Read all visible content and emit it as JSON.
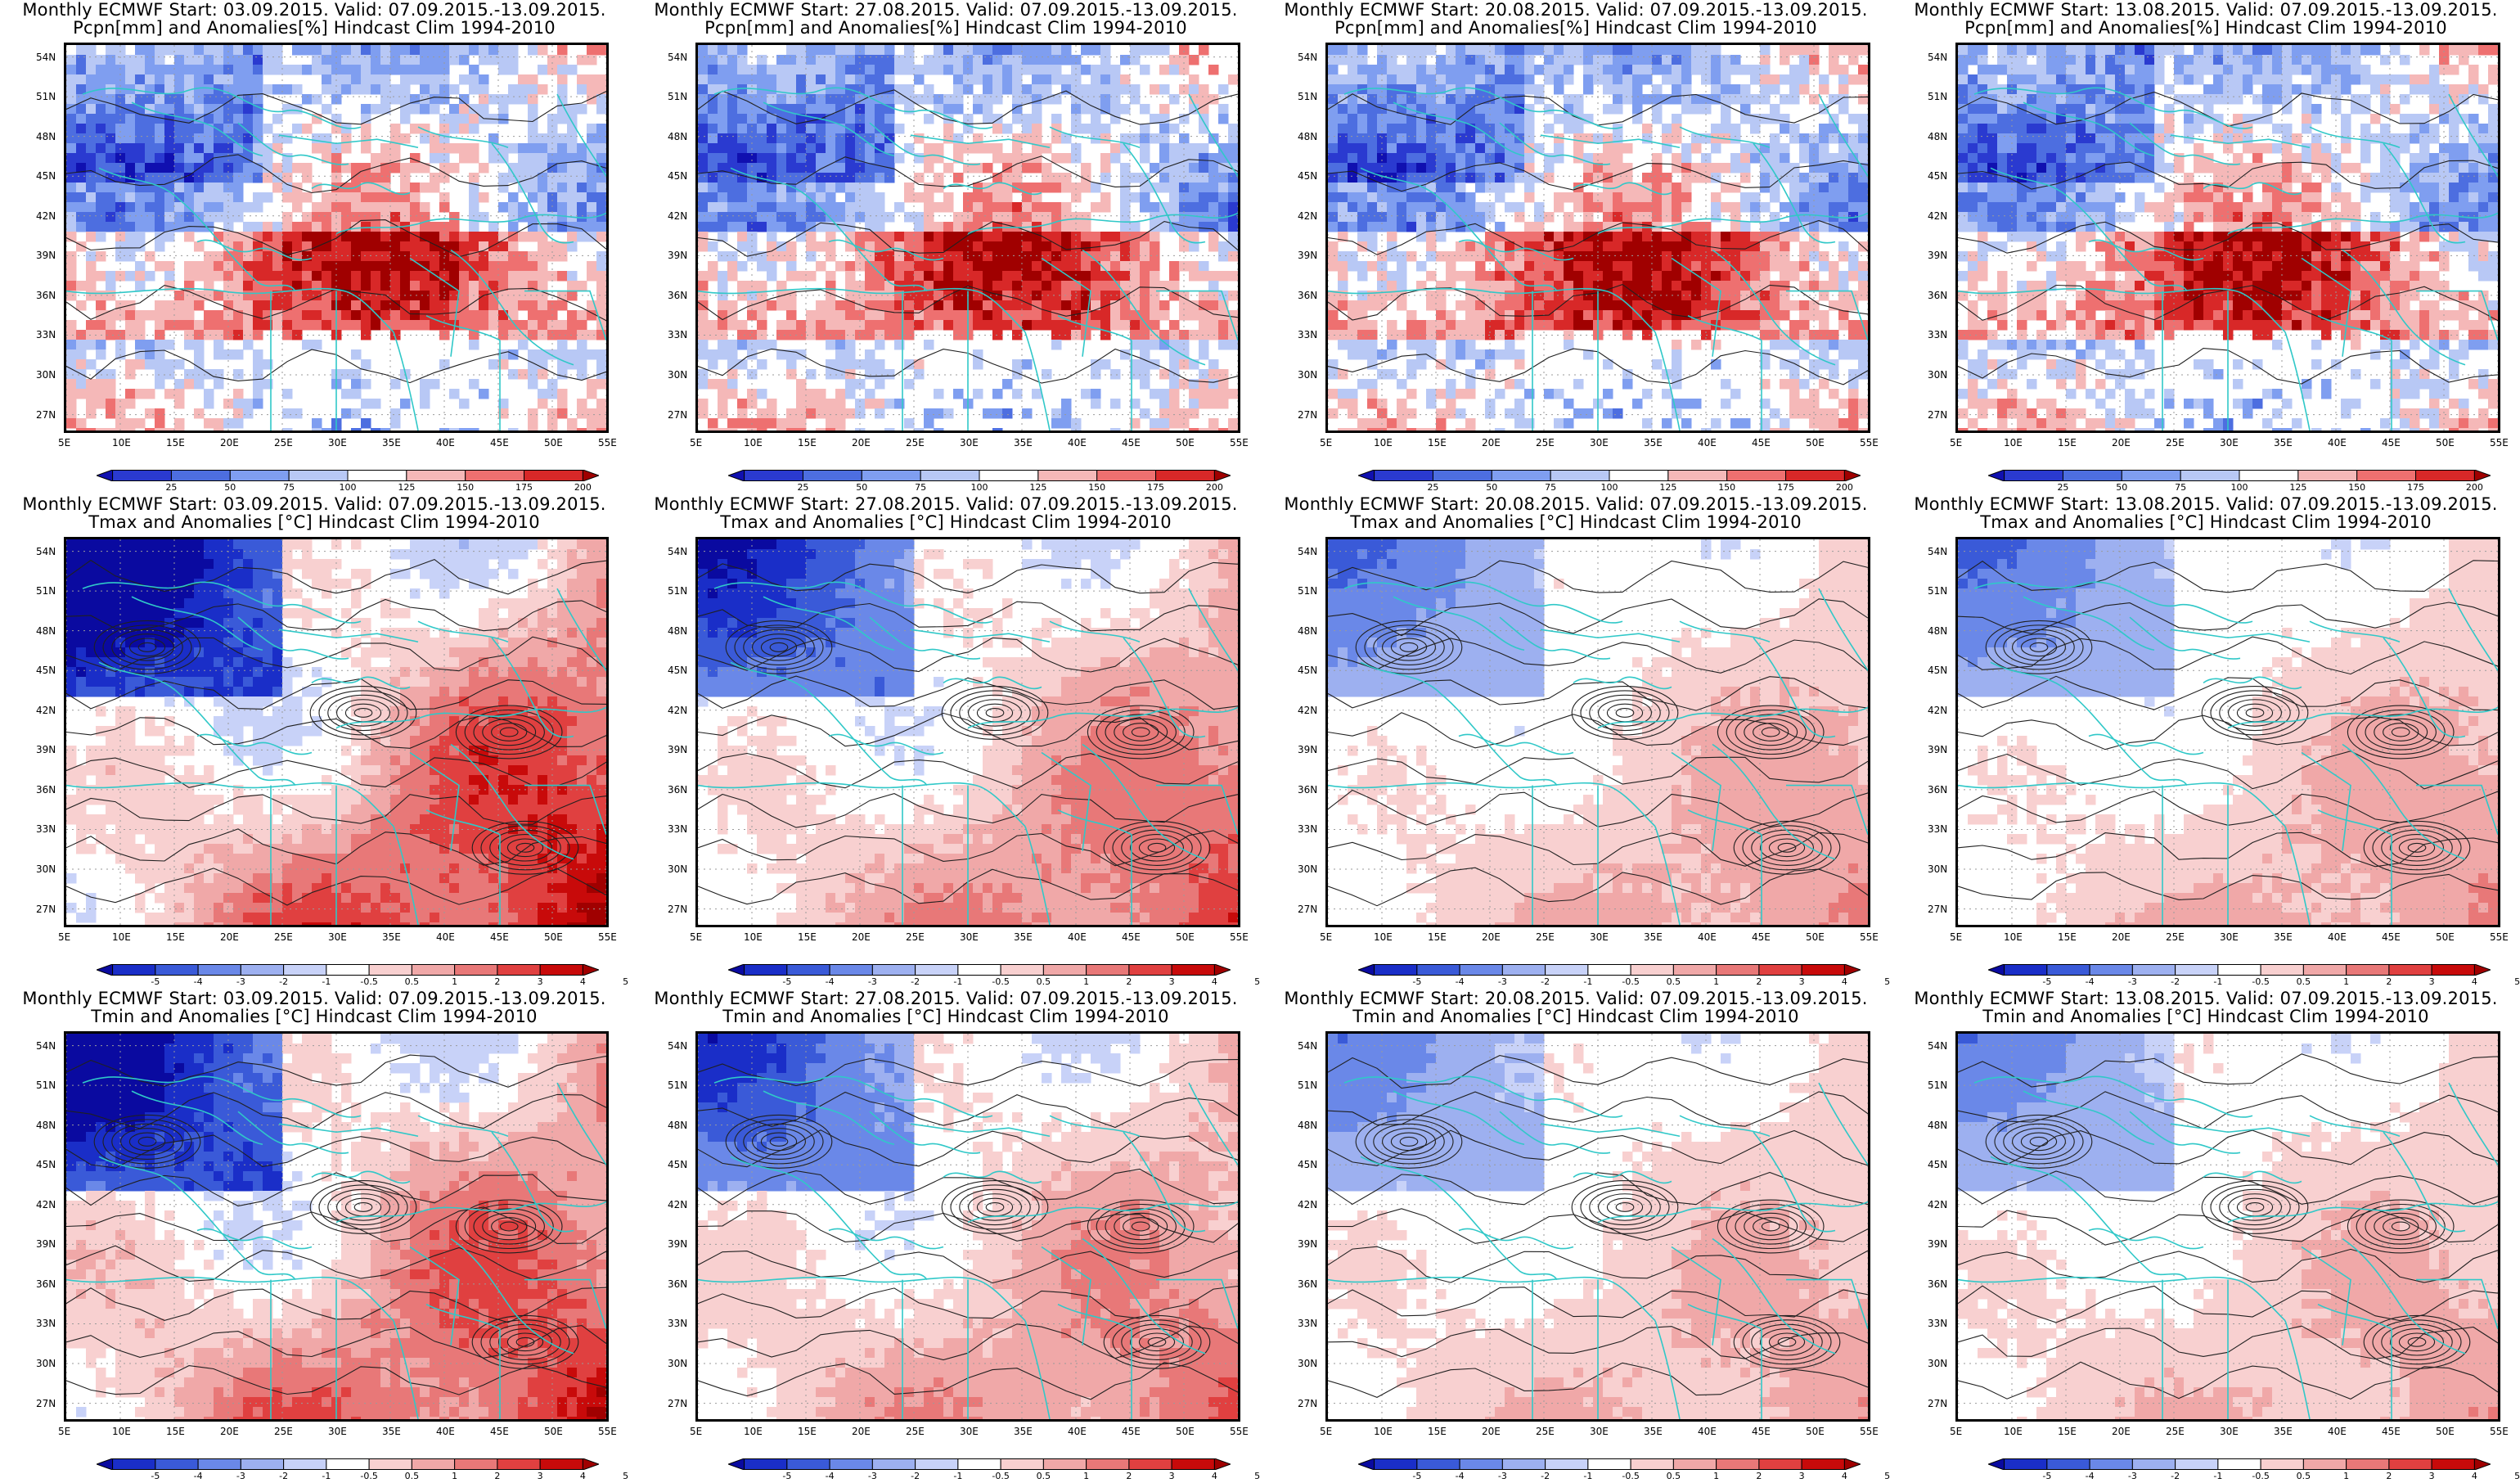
{
  "figure": {
    "colorbar": {
      "precip": {
        "labels": [
          "25",
          "50",
          "75",
          "100",
          "125",
          "150",
          "175",
          "200"
        ],
        "colors": [
          "#1010b0",
          "#2a3ad0",
          "#4d6ee0",
          "#7f9ef0",
          "#b8c8f5",
          "#ffffff",
          "#f5b8b8",
          "#ee7070",
          "#d82828",
          "#a00000"
        ]
      },
      "temp": {
        "labels": [
          "-5",
          "-4",
          "-3",
          "-2",
          "-1",
          "-0.5",
          "0.5",
          "1",
          "2",
          "3",
          "4",
          "5"
        ],
        "colors": [
          "#0a0aa0",
          "#1a2ec8",
          "#3a5ad8",
          "#6a88e8",
          "#9db0f0",
          "#c8d2f8",
          "#ffffff",
          "#f8d0d0",
          "#f0a8a8",
          "#e87878",
          "#e04040",
          "#c80a0a",
          "#a00000"
        ]
      }
    },
    "axes": {
      "lat_labels": [
        "54N",
        "51N",
        "48N",
        "45N",
        "42N",
        "39N",
        "36N",
        "33N",
        "30N",
        "27N"
      ],
      "lon_labels": [
        "5E",
        "10E",
        "15E",
        "20E",
        "25E",
        "30E",
        "35E",
        "40E",
        "45E",
        "50E",
        "55E"
      ]
    },
    "colors": {
      "coast": "#30c8c8",
      "contour": "#202020",
      "grid": "#9a9a9a"
    },
    "rows": [
      {
        "variable": "precip",
        "panels": [
          {
            "line1": "Monthly ECMWF Start: 03.09.2015. Valid: 07.09.2015.-13.09.2015.",
            "line2": "Pcpn[mm] and Anomalies[%] Hindcast Clim 1994-2010"
          },
          {
            "line1": "Monthly ECMWF Start: 27.08.2015. Valid: 07.09.2015.-13.09.2015.",
            "line2": "Pcpn[mm] and Anomalies[%] Hindcast Clim 1994-2010"
          },
          {
            "line1": "Monthly ECMWF Start: 20.08.2015. Valid: 07.09.2015.-13.09.2015.",
            "line2": "Pcpn[mm] and Anomalies[%] Hindcast Clim 1994-2010"
          },
          {
            "line1": "Monthly ECMWF Start: 13.08.2015. Valid: 07.09.2015.-13.09.2015.",
            "line2": "Pcpn[mm] and Anomalies[%] Hindcast Clim 1994-2010"
          }
        ]
      },
      {
        "variable": "temp",
        "panels": [
          {
            "line1": "Monthly ECMWF Start: 03.09.2015. Valid: 07.09.2015.-13.09.2015.",
            "line2": "Tmax and Anomalies [°C] Hindcast Clim 1994-2010"
          },
          {
            "line1": "Monthly ECMWF Start: 27.08.2015. Valid: 07.09.2015.-13.09.2015.",
            "line2": "Tmax and Anomalies [°C] Hindcast Clim 1994-2010"
          },
          {
            "line1": "Monthly ECMWF Start: 20.08.2015. Valid: 07.09.2015.-13.09.2015.",
            "line2": "Tmax and Anomalies [°C] Hindcast Clim 1994-2010"
          },
          {
            "line1": "Monthly ECMWF Start: 13.08.2015. Valid: 07.09.2015.-13.09.2015.",
            "line2": "Tmax and Anomalies [°C] Hindcast Clim 1994-2010"
          }
        ]
      },
      {
        "variable": "temp",
        "panels": [
          {
            "line1": "Monthly ECMWF Start: 03.09.2015. Valid: 07.09.2015.-13.09.2015.",
            "line2": "Tmin and Anomalies [°C] Hindcast Clim 1994-2010"
          },
          {
            "line1": "Monthly ECMWF Start: 27.08.2015. Valid: 07.09.2015.-13.09.2015.",
            "line2": "Tmin and Anomalies [°C] Hindcast Clim 1994-2010"
          },
          {
            "line1": "Monthly ECMWF Start: 20.08.2015. Valid: 07.09.2015.-13.09.2015.",
            "line2": "Tmin and Anomalies [°C] Hindcast Clim 1994-2010"
          },
          {
            "line1": "Monthly ECMWF Start: 13.08.2015. Valid: 07.09.2015.-13.09.2015.",
            "line2": "Tmin and Anomalies [°C] Hindcast Clim 1994-2010"
          }
        ]
      }
    ]
  }
}
